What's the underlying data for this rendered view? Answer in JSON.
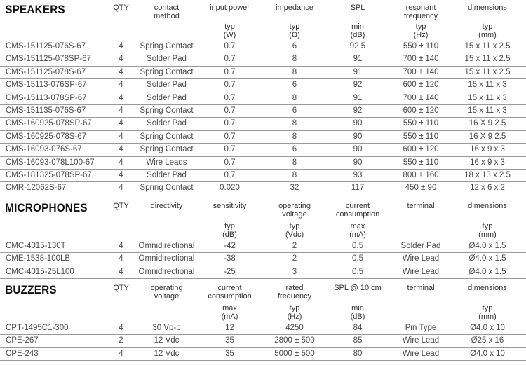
{
  "sections": [
    {
      "title": "SPEAKERS",
      "columns": [
        {
          "label": "QTY",
          "sub": ""
        },
        {
          "label": "contact\nmethod",
          "sub": ""
        },
        {
          "label": "input power",
          "sub": "typ\n(W)"
        },
        {
          "label": "impedance",
          "sub": "typ\n(Ω)"
        },
        {
          "label": "SPL",
          "sub": "min\n(dB)"
        },
        {
          "label": "resonant\nfrequency",
          "sub": "typ\n(Hz)"
        },
        {
          "label": "dimensions",
          "sub": "typ\n(mm)"
        }
      ],
      "rows": [
        [
          "CMS-151125-076S-67",
          "4",
          "Spring Contact",
          "0.7",
          "6",
          "92.5",
          "550 ± 110",
          "15 x 11 x 2.5"
        ],
        [
          "CMS-151125-078SP-67",
          "4",
          "Solder Pad",
          "0.7",
          "8",
          "91",
          "700 ± 140",
          "15 x 11 x 2.5"
        ],
        [
          "CMS-151125-078S-67",
          "4",
          "Spring Contact",
          "0.7",
          "8",
          "91",
          "700 ± 140",
          "15 x 11 x 2.5"
        ],
        [
          "CMS-15113-076SP-67",
          "4",
          "Solder Pad",
          "0.7",
          "6",
          "92",
          "600 ± 120",
          "15 x 11 x 3"
        ],
        [
          "CMS-15113-078SP-67",
          "4",
          "Solder Pad",
          "0.7",
          "8",
          "91",
          "700 ± 140",
          "15 x 11 x 3"
        ],
        [
          "CMS-151135-076S-67",
          "4",
          "Spring Contact",
          "0.7",
          "6",
          "92",
          "600 ± 120",
          "15 x 11 x 3"
        ],
        [
          "CMS-160925-078SP-67",
          "4",
          "Solder Pad",
          "0.7",
          "8",
          "90",
          "550 ± 110",
          "16 X 9 2.5"
        ],
        [
          "CMS-160925-078S-67",
          "4",
          "Spring Contact",
          "0.7",
          "8",
          "90",
          "550 ± 110",
          "16 X 9 2.5"
        ],
        [
          "CMS-16093-076S-67",
          "4",
          "Spring Contact",
          "0.7",
          "6",
          "90",
          "600 ± 120",
          "16 x 9 x 3"
        ],
        [
          "CMS-16093-078L100-67",
          "4",
          "Wire Leads",
          "0.7",
          "8",
          "90",
          "550 ± 110",
          "16 x 9 x 3"
        ],
        [
          "CMS-181325-078SP-67",
          "4",
          "Solder Pad",
          "0.7",
          "8",
          "93",
          "800 ± 160",
          "18 x 13 x 2.5"
        ],
        [
          "CMR-12062S-67",
          "4",
          "Spring Contact",
          "0.020",
          "32",
          "117",
          "450 ± 90",
          "12 x 6 x 2"
        ]
      ]
    },
    {
      "title": "MICROPHONES",
      "columns": [
        {
          "label": "QTY",
          "sub": ""
        },
        {
          "label": "directivity",
          "sub": ""
        },
        {
          "label": "sensitivity",
          "sub": "typ\n(dB)"
        },
        {
          "label": "operating\nvoltage",
          "sub": "typ\n(Vdc)"
        },
        {
          "label": "current\nconsumption",
          "sub": "max\n(mA)"
        },
        {
          "label": "terminal",
          "sub": ""
        },
        {
          "label": "dimensions",
          "sub": "typ\n(mm)"
        }
      ],
      "rows": [
        [
          "CMC-4015-130T",
          "4",
          "Omnidirectional",
          "-42",
          "2",
          "0.5",
          "Solder Pad",
          "Ø4.0 x 1.5"
        ],
        [
          "CME-1538-100LB",
          "4",
          "Omnidirectional",
          "-38",
          "2",
          "0.5",
          "Wire Lead",
          "Ø4.0 x 1.5"
        ],
        [
          "CMC-4015-25L100",
          "4",
          "Omnidirectional",
          "-25",
          "3",
          "0.5",
          "Wire Lead",
          "Ø4.0 x 1.5"
        ]
      ]
    },
    {
      "title": "BUZZERS",
      "columns": [
        {
          "label": "QTY",
          "sub": ""
        },
        {
          "label": "operating\nvoltage",
          "sub": ""
        },
        {
          "label": "current\nconsumption",
          "sub": "max\n(mA)"
        },
        {
          "label": "rated\nfrequency",
          "sub": "typ\n(Hz)"
        },
        {
          "label": "SPL @ 10 cm",
          "sub": "min\n(dB)"
        },
        {
          "label": "terminal",
          "sub": ""
        },
        {
          "label": "dimensions",
          "sub": "typ\n(mm)"
        }
      ],
      "rows": [
        [
          "CPT-1495C1-300",
          "4",
          "30 Vp-p",
          "12",
          "4250",
          "84",
          "Pin Type",
          "Ø4.0 x 10"
        ],
        [
          "CPE-267",
          "2",
          "12 Vdc",
          "35",
          "2800 ± 500",
          "85",
          "Wire Lead",
          "Ø25 x 16"
        ],
        [
          "CPE-243",
          "4",
          "12 Vdc",
          "35",
          "5000 ± 500",
          "80",
          "Wire Lead",
          "Ø4.0 x 10"
        ]
      ]
    }
  ]
}
